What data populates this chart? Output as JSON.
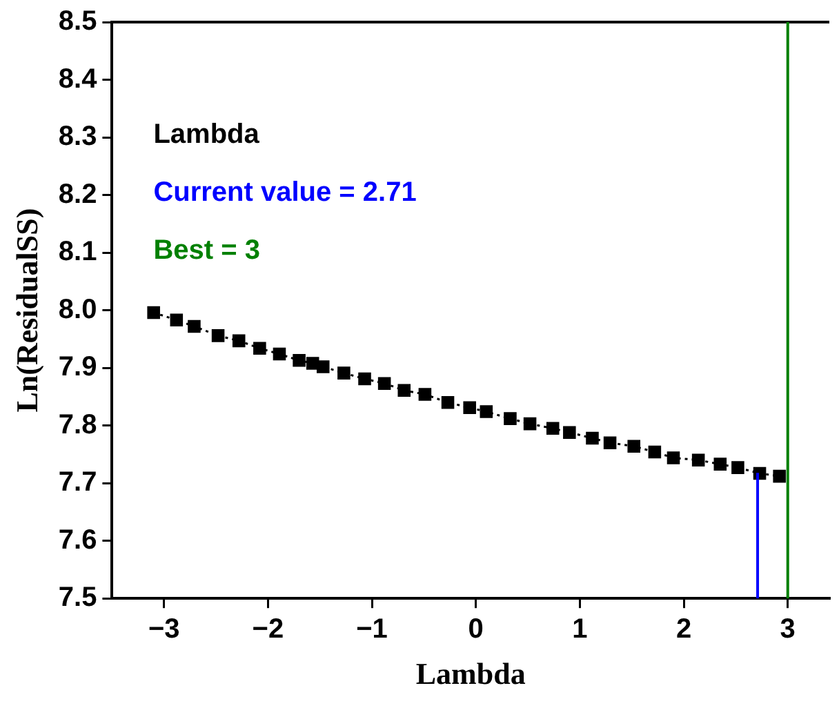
{
  "chart_data": {
    "type": "line",
    "xlabel": "Lambda",
    "ylabel": "Ln(ResidualSS)",
    "xlim": [
      -3.5,
      3.4
    ],
    "ylim": [
      7.5,
      8.5
    ],
    "xticks": [
      {
        "value": -3,
        "label": "−3"
      },
      {
        "value": -2,
        "label": "−2"
      },
      {
        "value": -1,
        "label": "−1"
      },
      0,
      1,
      2,
      3
    ],
    "yticks": [
      {
        "value": 7.5,
        "label": "7.5"
      },
      7.6,
      7.7,
      7.8,
      7.9,
      {
        "value": 8,
        "label": "8.0"
      },
      8.1,
      8.2,
      8.3,
      8.4,
      {
        "value": 8.5,
        "label": "8.5"
      }
    ],
    "grid": false,
    "legend": false,
    "marker": "square",
    "line_style": "dotted",
    "annotations": [
      "Lambda"
    ],
    "ref_lines": [
      {
        "axis": "x",
        "value": 2.71,
        "label": "Current value = 2.71",
        "color": "#0000ff"
      },
      {
        "axis": "x",
        "value": 3,
        "label": "Best = 3",
        "color": "#008000"
      }
    ],
    "series": [
      {
        "color": "#000000",
        "x": [
          -3.1,
          -2.88,
          -2.71,
          -2.48,
          -2.28,
          -2.08,
          -1.89,
          -1.7,
          -1.57,
          -1.47,
          -1.27,
          -1.07,
          -0.88,
          -0.69,
          -0.49,
          -0.27,
          -0.06,
          0.1,
          0.33,
          0.52,
          0.74,
          0.9,
          1.12,
          1.29,
          1.52,
          1.72,
          1.9,
          2.14,
          2.35,
          2.52,
          2.73,
          2.92
        ],
        "values": [
          7.996,
          7.983,
          7.972,
          7.956,
          7.947,
          7.934,
          7.924,
          7.913,
          7.908,
          7.902,
          7.891,
          7.881,
          7.873,
          7.861,
          7.854,
          7.84,
          7.831,
          7.824,
          7.812,
          7.803,
          7.795,
          7.788,
          7.778,
          7.77,
          7.764,
          7.754,
          7.744,
          7.74,
          7.733,
          7.727,
          7.717,
          7.712
        ]
      }
    ]
  }
}
